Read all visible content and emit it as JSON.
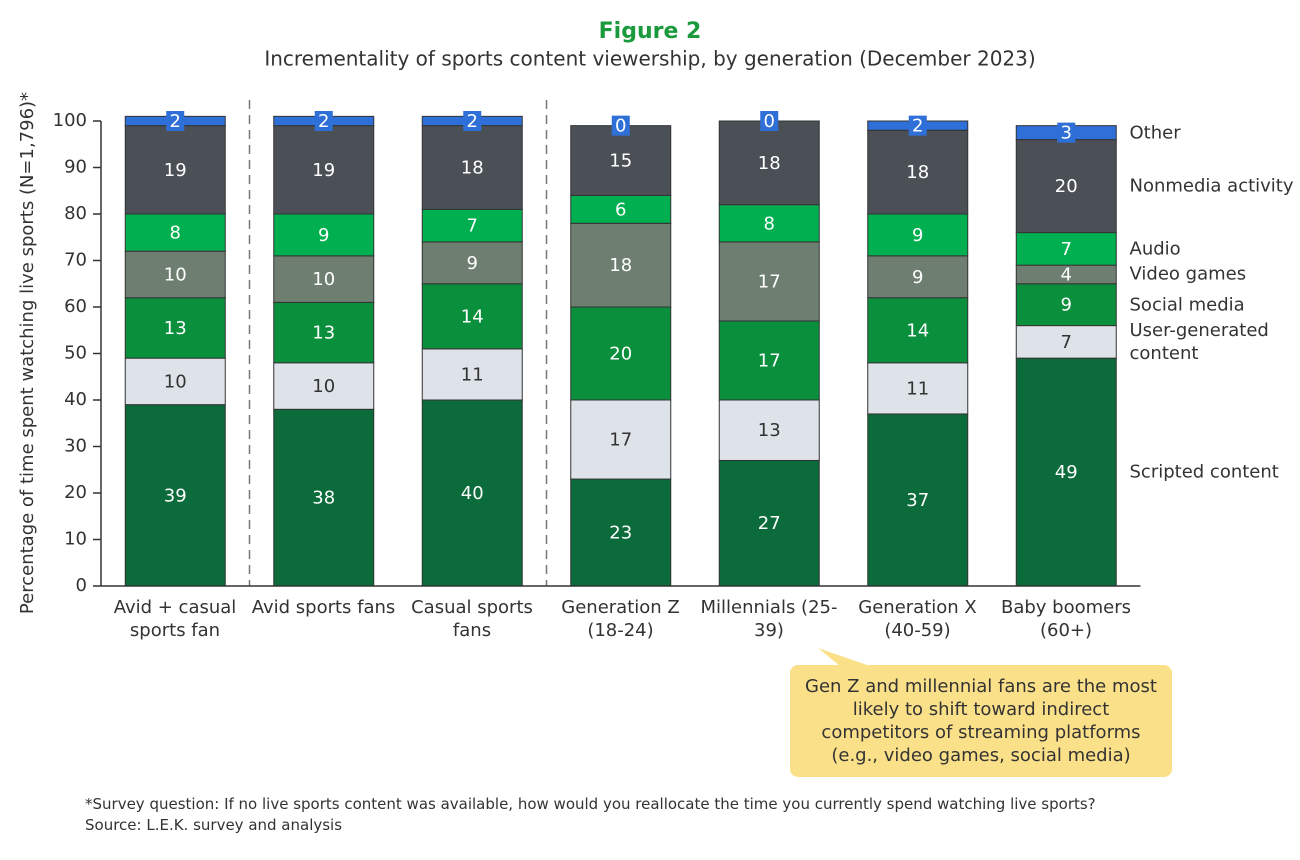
{
  "chart_data": {
    "type": "stacked_bar",
    "title": "Figure 2",
    "subtitle": "Incrementality of sports content viewership, by generation (December 2023)",
    "y_label": "Percentage of time spent watching live sports (N=1,796)*",
    "categories": [
      "Avid + casual sports fan",
      "Avid sports fans",
      "Casual sports fans",
      "Generation Z (18-24)",
      "Millennials (25-39)",
      "Generation X (40-59)",
      "Baby boomers (60+)"
    ],
    "separators_after": [
      0,
      2
    ],
    "series": [
      {
        "name": "Scripted content",
        "color": "#0b6b3a",
        "label_color": "#ffffff",
        "values": [
          39,
          38,
          40,
          23,
          27,
          37,
          49
        ]
      },
      {
        "name": "User-generated content",
        "color": "#dde3e8",
        "label_color": "#333333",
        "values": [
          10,
          10,
          11,
          17,
          13,
          11,
          7
        ]
      },
      {
        "name": "Social media",
        "color": "#0a8f3c",
        "label_color": "#ffffff",
        "values": [
          13,
          13,
          14,
          20,
          17,
          14,
          9
        ]
      },
      {
        "name": "Video games",
        "color": "#6e7f72",
        "label_color": "#ffffff",
        "values": [
          10,
          10,
          9,
          18,
          17,
          9,
          4
        ]
      },
      {
        "name": "Audio",
        "color": "#00b050",
        "label_color": "#ffffff",
        "values": [
          8,
          9,
          7,
          6,
          8,
          9,
          7
        ]
      },
      {
        "name": "Nonmedia activity",
        "color": "#4b5057",
        "label_color": "#ffffff",
        "values": [
          19,
          19,
          18,
          15,
          18,
          18,
          20
        ]
      },
      {
        "name": "Other",
        "color": "#2f6fd8",
        "label_color": "#ffffff",
        "label_box": true,
        "values": [
          2,
          2,
          2,
          0,
          0,
          2,
          3
        ]
      }
    ],
    "ylim": [
      0,
      100
    ],
    "yticks": [
      0,
      10,
      20,
      30,
      40,
      50,
      60,
      70,
      80,
      90,
      100
    ],
    "annotation": "Gen Z and millennial fans are the most likely to shift toward indirect competitors of streaming platforms (e.g., video games, social media)",
    "footnote": "*Survey question: If no live sports content was available, how would you reallocate the time you currently spend watching live sports?",
    "source": "Source: L.E.K. survey and analysis"
  }
}
